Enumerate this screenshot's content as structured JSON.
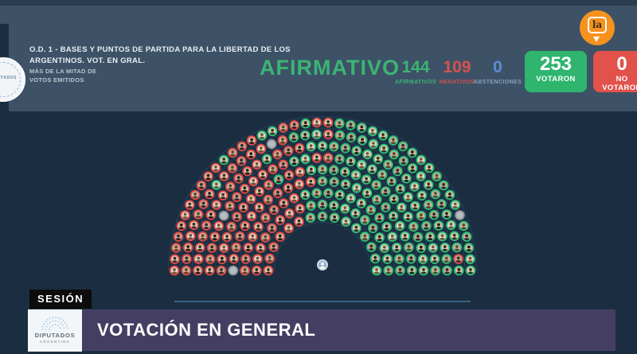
{
  "header": {
    "agenda_line1": "O.D. 1 - BASES Y PUNTOS DE PARTIDA PARA LA LIBERTAD DE LOS",
    "agenda_line2": "ARGENTINOS. VOT. EN GRAL.",
    "note_line1": "MÁS DE LA MITAD DE",
    "note_line2": "VOTOS EMITIDOS",
    "result_label": "AFIRMATIVO",
    "counters": [
      {
        "value": "144",
        "label": "AFIRMATIVOS",
        "color": "#3cb474"
      },
      {
        "value": "109",
        "label": "NEGATIVOS",
        "color": "#d7524e"
      },
      {
        "value": "0",
        "label": "ABSTENCIONES",
        "color": "#5b8fd4"
      }
    ],
    "voted_box": {
      "value": "253",
      "label": "VOTARON",
      "bg": "#2fb56e"
    },
    "not_voted_box": {
      "value": "0",
      "label_line1": "NO",
      "label_line2": "VOTARON",
      "bg": "#e1524b"
    },
    "channel_logo_text": "la"
  },
  "footer": {
    "session_badge": "SESIÓN",
    "logo_line1": "DIPUTADOS",
    "logo_line2": "ARGENTINA",
    "banner_title": "VOTACIÓN EN GENERAL"
  },
  "chart_data": {
    "type": "parliament-hemicycle",
    "title": "O.D. 1 - BASES Y PUNTOS DE PARTIDA PARA LA LIBERTAD DE LOS ARGENTINOS. VOT. EN GRAL.",
    "totals": {
      "afirmativos": 144,
      "negativos": 109,
      "abstenciones": 0,
      "votaron": 253,
      "no_votaron": 0
    },
    "total_seats": 257,
    "legend": {
      "A": "afirmativo",
      "N": "negativo",
      "X": "ausente"
    },
    "seat_colors": {
      "A": "#2ec177",
      "N": "#df4b47",
      "X": "#8e969c"
    },
    "rows_inner_to_outer": [
      "NNNNNNAAAAAAAAA",
      "NNNNNNNNAAAAAAAAAAA",
      "NNNNNNNNNAAAAAAAAAAAAA",
      "XNNNNNNNNNNNAAAAAAAAAAAAA",
      "NNNNNNNNNNANNAAAAAAAAAAAAAAAA",
      "NNNNNXNNNNNNNAANNAAAAAAAAAAAAAAA",
      "NNNNNNNNNNNNANNNAAAAAAAAAAAAAAAAAAA",
      "NNNNNNNNANNNNNXNAAANAAAAAAAAAAAAAAAANA",
      "NNNNNNNNNNNANNNAANNANNAAAAAAAAAAAAAAXAAAAA"
    ],
    "presiding_officer_seat": true
  },
  "colors": {
    "background": "#1b2e41",
    "header_band": "#3d5266",
    "banner": "#453e63",
    "baseline": "#4a7ba3",
    "channel_logo_bg": "#f6921e"
  }
}
